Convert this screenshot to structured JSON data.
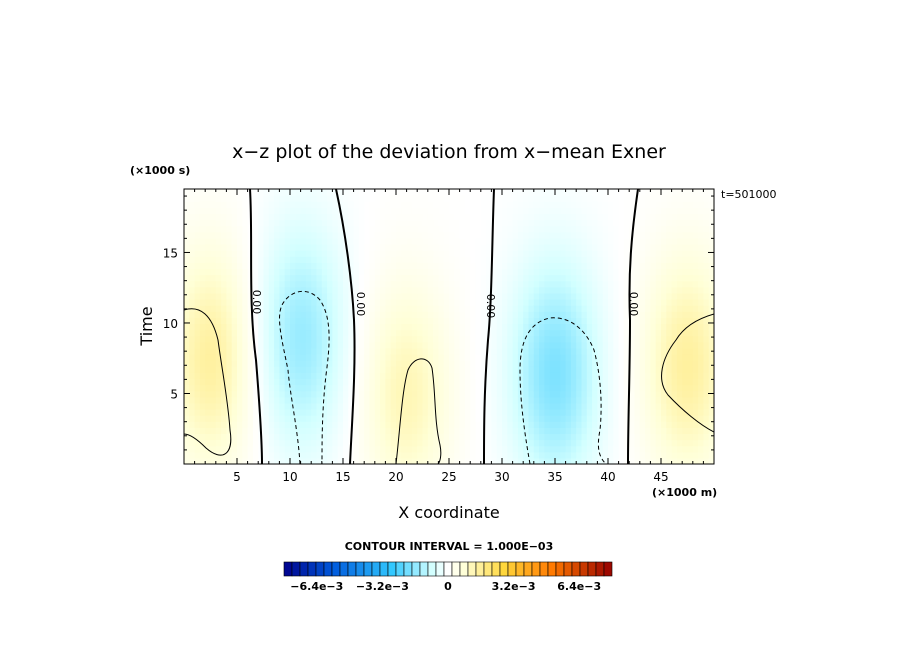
{
  "chart_data": {
    "type": "heatmap",
    "title": "x−z plot of the deviation from x−mean Exner",
    "xlabel": "X coordinate",
    "ylabel": "Time",
    "x_unit": "(×1000 m)",
    "y_unit": "(×1000 s)",
    "time_label": "t=501000",
    "xlim": [
      0,
      50
    ],
    "ylim": [
      0,
      19.5
    ],
    "x_ticks": [
      5,
      10,
      15,
      20,
      25,
      30,
      35,
      40,
      45
    ],
    "y_ticks": [
      5,
      10,
      15
    ],
    "contour_interval_text": "CONTOUR INTERVAL = 1.000E−03",
    "zero_contour_labels": [
      "0.00",
      "0.00",
      "0.00",
      "0.00"
    ],
    "colorbar": {
      "range": [
        -0.008,
        0.008
      ],
      "tick_labels": [
        "−6.4e−3",
        "−3.2e−3",
        "0",
        "3.2e−3",
        "6.4e−3"
      ],
      "tick_values": [
        -0.0064,
        -0.0032,
        0,
        0.0032,
        0.0064
      ]
    },
    "field_features": [
      {
        "x": 2.5,
        "y": 7.5,
        "sign": "positive",
        "amplitude": 0.0015
      },
      {
        "x": 11,
        "y": 9,
        "sign": "negative",
        "amplitude": 0.0015
      },
      {
        "x": 21,
        "y": 5,
        "sign": "positive",
        "amplitude": 0.0012
      },
      {
        "x": 35,
        "y": 6.5,
        "sign": "negative",
        "amplitude": 0.0018
      },
      {
        "x": 47.5,
        "y": 7,
        "sign": "positive",
        "amplitude": 0.0015
      }
    ]
  }
}
